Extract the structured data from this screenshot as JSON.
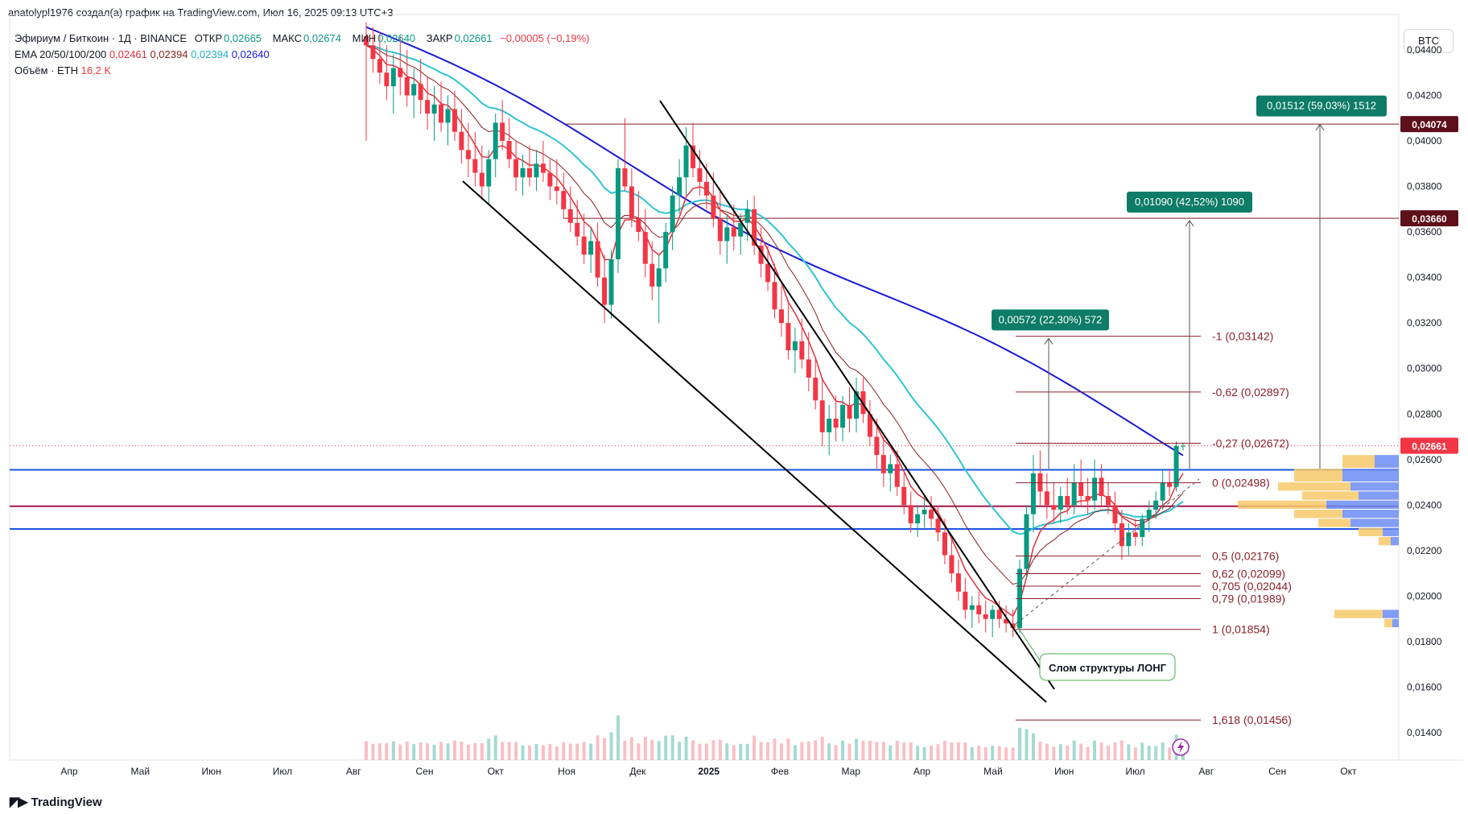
{
  "header": {
    "caption": "anatolypl1976 создал(а) график на TradingView.com, Июл 16, 2025 09:13 UTC+3"
  },
  "legend": {
    "symbol": "Эфириум / Биткоин · 1Д · BINANCE",
    "open_label": "ОТКР",
    "open": "0,02665",
    "high_label": "МАКС",
    "high": "0,02674",
    "low_label": "МИН",
    "low": "0,02640",
    "close_label": "ЗАКР",
    "close": "0,02661",
    "change": "−0,00005 (−0,19%)",
    "ema_label": "EMA 20/50/100/200",
    "ema20": "0,02461",
    "ema50": "0,02394",
    "ema100": "0,02394",
    "ema200": "0,02640",
    "volume_label": "Объём · ETH",
    "volume": "16,2 K"
  },
  "currency_button": "BTC",
  "branding": "TradingView",
  "colors": {
    "up": "#089981",
    "down": "#f23645",
    "ema20": "#e0303b",
    "ema50": "#8b1f1f",
    "ema100": "#2ec4d3",
    "ema200": "#1a1ad6",
    "blue_line": "#1e53e5",
    "maroon_line": "#a3174a",
    "accent_box": "#0e7c66",
    "price_tag": "#f23645",
    "dark_tag": "#5d0f1a"
  },
  "chart_data": {
    "type": "candlestick",
    "y_scale": "linear",
    "ylim": [
      0.0128,
      0.0452
    ],
    "y_ticks": [
      "0,04400",
      "0,04200",
      "0,04000",
      "0,03800",
      "0,03600",
      "0,03400",
      "0,03200",
      "0,03000",
      "0,02800",
      "0,02600",
      "0,02400",
      "0,02200",
      "0,02000",
      "0,01800",
      "0,01600",
      "0,01400"
    ],
    "x_ticks": [
      "Апр",
      "Май",
      "Июн",
      "Июл",
      "Авг",
      "Сен",
      "Окт",
      "Ноя",
      "Дек",
      "2025",
      "Фев",
      "Мар",
      "Апр",
      "Май",
      "Июн",
      "Июл",
      "Авг",
      "Сен",
      "Окт"
    ],
    "price_tags": [
      {
        "text": "0,04074",
        "value": 0.04074,
        "style": "dark"
      },
      {
        "text": "0,03660",
        "value": 0.0366,
        "style": "dark"
      },
      {
        "text": "0,02661",
        "value": 0.02661,
        "style": "last"
      }
    ],
    "horizontal_levels": [
      {
        "value": 0.02555,
        "color": "blue"
      },
      {
        "value": 0.02395,
        "color": "maroon"
      },
      {
        "value": 0.02295,
        "color": "blue"
      },
      {
        "value": 0.04074,
        "color": "maroon_thin"
      },
      {
        "value": 0.0366,
        "color": "maroon_thin"
      }
    ],
    "fibonacci": [
      {
        "label": "-1 (0,03142)",
        "value": 0.03142
      },
      {
        "label": "-0,62 (0,02897)",
        "value": 0.02897
      },
      {
        "label": "-0,27 (0,02672)",
        "value": 0.02672
      },
      {
        "label": "0 (0,02498)",
        "value": 0.02498
      },
      {
        "label": "0,5 (0,02176)",
        "value": 0.02176
      },
      {
        "label": "0,62 (0,02099)",
        "value": 0.02099
      },
      {
        "label": "0,705 (0,02044)",
        "value": 0.02044
      },
      {
        "label": "0,79 (0,01989)",
        "value": 0.01989
      },
      {
        "label": "1 (0,01854)",
        "value": 0.01854
      },
      {
        "label": "1,618 (0,01456)",
        "value": 0.01456
      }
    ],
    "measure_boxes": [
      {
        "text": "0,00572 (22,30%) 572",
        "from": 0.0256,
        "to": 0.03132
      },
      {
        "text": "0,01090 (42,52%) 1090",
        "from": 0.0256,
        "to": 0.0365
      },
      {
        "text": "0,01512 (59,03%) 1512",
        "from": 0.0256,
        "to": 0.04072
      }
    ],
    "annotation": "Слом структуры ЛОНГ",
    "ema_last": {
      "ema20": 0.02461,
      "ema50": 0.02394,
      "ema100": 0.02394,
      "ema200": 0.0264
    },
    "candles_note": "approximate series reconstructed from image (open, high, low, close), daily",
    "candles": [
      [
        0.0446,
        0.0452,
        0.04,
        0.0442
      ],
      [
        0.0442,
        0.045,
        0.043,
        0.0436
      ],
      [
        0.0436,
        0.0448,
        0.0425,
        0.043
      ],
      [
        0.043,
        0.0442,
        0.0418,
        0.0424
      ],
      [
        0.0424,
        0.0438,
        0.0412,
        0.0432
      ],
      [
        0.0432,
        0.0446,
        0.042,
        0.0428
      ],
      [
        0.0428,
        0.044,
        0.0415,
        0.042
      ],
      [
        0.042,
        0.0432,
        0.041,
        0.0425
      ],
      [
        0.0425,
        0.0436,
        0.0412,
        0.0418
      ],
      [
        0.0418,
        0.0428,
        0.0405,
        0.0412
      ],
      [
        0.0412,
        0.0424,
        0.04,
        0.0416
      ],
      [
        0.0416,
        0.0426,
        0.0404,
        0.0408
      ],
      [
        0.0408,
        0.042,
        0.0398,
        0.0414
      ],
      [
        0.0414,
        0.0422,
        0.04,
        0.0404
      ],
      [
        0.0404,
        0.0414,
        0.039,
        0.0396
      ],
      [
        0.0396,
        0.0408,
        0.0384,
        0.0392
      ],
      [
        0.0392,
        0.0404,
        0.038,
        0.0386
      ],
      [
        0.0386,
        0.0398,
        0.0374,
        0.038
      ],
      [
        0.038,
        0.0396,
        0.0372,
        0.0392
      ],
      [
        0.0392,
        0.0412,
        0.0384,
        0.0408
      ],
      [
        0.0408,
        0.0418,
        0.0396,
        0.04
      ],
      [
        0.04,
        0.041,
        0.0388,
        0.0392
      ],
      [
        0.0392,
        0.04,
        0.0378,
        0.0384
      ],
      [
        0.0384,
        0.0394,
        0.0376,
        0.0388
      ],
      [
        0.0388,
        0.0398,
        0.038,
        0.0384
      ],
      [
        0.0384,
        0.0396,
        0.0378,
        0.039
      ],
      [
        0.039,
        0.04,
        0.0382,
        0.0386
      ],
      [
        0.0386,
        0.0392,
        0.0374,
        0.038
      ],
      [
        0.038,
        0.0392,
        0.0372,
        0.0378
      ],
      [
        0.0378,
        0.0386,
        0.0366,
        0.037
      ],
      [
        0.037,
        0.038,
        0.036,
        0.0364
      ],
      [
        0.0364,
        0.0374,
        0.0354,
        0.0358
      ],
      [
        0.0358,
        0.0368,
        0.0346,
        0.035
      ],
      [
        0.035,
        0.0362,
        0.0342,
        0.0356
      ],
      [
        0.0356,
        0.0364,
        0.0336,
        0.034
      ],
      [
        0.034,
        0.035,
        0.032,
        0.0328
      ],
      [
        0.0328,
        0.0352,
        0.0322,
        0.0348
      ],
      [
        0.0348,
        0.0392,
        0.0342,
        0.0388
      ],
      [
        0.0388,
        0.041,
        0.0378,
        0.038
      ],
      [
        0.038,
        0.0388,
        0.0362,
        0.0366
      ],
      [
        0.0366,
        0.0378,
        0.0356,
        0.036
      ],
      [
        0.036,
        0.037,
        0.034,
        0.0346
      ],
      [
        0.0346,
        0.0356,
        0.033,
        0.0336
      ],
      [
        0.0336,
        0.035,
        0.032,
        0.0344
      ],
      [
        0.0344,
        0.0364,
        0.0338,
        0.036
      ],
      [
        0.036,
        0.038,
        0.0352,
        0.0376
      ],
      [
        0.0376,
        0.0392,
        0.0368,
        0.0384
      ],
      [
        0.0384,
        0.0406,
        0.0376,
        0.0398
      ],
      [
        0.0398,
        0.0408,
        0.0384,
        0.0388
      ],
      [
        0.0388,
        0.0396,
        0.0376,
        0.0382
      ],
      [
        0.0382,
        0.039,
        0.037,
        0.0376
      ],
      [
        0.0376,
        0.0386,
        0.0362,
        0.0366
      ],
      [
        0.0366,
        0.0378,
        0.035,
        0.0356
      ],
      [
        0.0356,
        0.0368,
        0.0346,
        0.0362
      ],
      [
        0.0362,
        0.0372,
        0.0352,
        0.0358
      ],
      [
        0.0358,
        0.0368,
        0.035,
        0.0364
      ],
      [
        0.0364,
        0.0374,
        0.0356,
        0.037
      ],
      [
        0.037,
        0.0376,
        0.035,
        0.0354
      ],
      [
        0.0354,
        0.0362,
        0.034,
        0.0346
      ],
      [
        0.0346,
        0.0354,
        0.0334,
        0.0338
      ],
      [
        0.0338,
        0.0346,
        0.0322,
        0.0326
      ],
      [
        0.0326,
        0.0336,
        0.0314,
        0.032
      ],
      [
        0.032,
        0.033,
        0.0304,
        0.0308
      ],
      [
        0.0308,
        0.0318,
        0.0298,
        0.0312
      ],
      [
        0.0312,
        0.0322,
        0.03,
        0.0304
      ],
      [
        0.0304,
        0.0316,
        0.029,
        0.0296
      ],
      [
        0.0296,
        0.0304,
        0.0282,
        0.0286
      ],
      [
        0.0286,
        0.0296,
        0.0266,
        0.0272
      ],
      [
        0.0272,
        0.0284,
        0.0262,
        0.0278
      ],
      [
        0.0278,
        0.0288,
        0.0268,
        0.0274
      ],
      [
        0.0274,
        0.0288,
        0.0268,
        0.0284
      ],
      [
        0.0284,
        0.0292,
        0.0272,
        0.0278
      ],
      [
        0.0278,
        0.0296,
        0.0272,
        0.029
      ],
      [
        0.029,
        0.0296,
        0.0276,
        0.028
      ],
      [
        0.028,
        0.0286,
        0.0266,
        0.027
      ],
      [
        0.027,
        0.0278,
        0.0256,
        0.0262
      ],
      [
        0.0262,
        0.027,
        0.0248,
        0.0254
      ],
      [
        0.0254,
        0.0262,
        0.0246,
        0.0258
      ],
      [
        0.0258,
        0.0264,
        0.0244,
        0.0248
      ],
      [
        0.0248,
        0.0254,
        0.0236,
        0.024
      ],
      [
        0.024,
        0.0246,
        0.0228,
        0.0232
      ],
      [
        0.0232,
        0.024,
        0.0226,
        0.0236
      ],
      [
        0.0236,
        0.0244,
        0.023,
        0.0238
      ],
      [
        0.0238,
        0.0244,
        0.023,
        0.0234
      ],
      [
        0.0234,
        0.024,
        0.0224,
        0.0228
      ],
      [
        0.0228,
        0.0234,
        0.0214,
        0.0218
      ],
      [
        0.0218,
        0.0226,
        0.0206,
        0.021
      ],
      [
        0.021,
        0.0216,
        0.0198,
        0.0202
      ],
      [
        0.0202,
        0.0208,
        0.019,
        0.0194
      ],
      [
        0.0194,
        0.02,
        0.0186,
        0.0196
      ],
      [
        0.0196,
        0.0202,
        0.0188,
        0.0192
      ],
      [
        0.0192,
        0.0198,
        0.0184,
        0.019
      ],
      [
        0.019,
        0.0196,
        0.0182,
        0.0194
      ],
      [
        0.0194,
        0.0198,
        0.0186,
        0.019
      ],
      [
        0.019,
        0.0196,
        0.0184,
        0.0188
      ],
      [
        0.0188,
        0.0194,
        0.0182,
        0.0186
      ],
      [
        0.0186,
        0.0216,
        0.0184,
        0.0212
      ],
      [
        0.0212,
        0.024,
        0.0208,
        0.0236
      ],
      [
        0.0236,
        0.0262,
        0.0228,
        0.0254
      ],
      [
        0.0254,
        0.0264,
        0.024,
        0.0246
      ],
      [
        0.0246,
        0.0254,
        0.0234,
        0.024
      ],
      [
        0.024,
        0.025,
        0.0232,
        0.0238
      ],
      [
        0.0238,
        0.0248,
        0.0232,
        0.0244
      ],
      [
        0.0244,
        0.0252,
        0.0236,
        0.024
      ],
      [
        0.024,
        0.0258,
        0.0236,
        0.025
      ],
      [
        0.025,
        0.026,
        0.024,
        0.0244
      ],
      [
        0.0244,
        0.0252,
        0.0236,
        0.0242
      ],
      [
        0.0242,
        0.026,
        0.0238,
        0.0252
      ],
      [
        0.0252,
        0.0258,
        0.024,
        0.0244
      ],
      [
        0.0244,
        0.025,
        0.0236,
        0.024
      ],
      [
        0.024,
        0.0246,
        0.0228,
        0.0232
      ],
      [
        0.0232,
        0.0238,
        0.0216,
        0.0222
      ],
      [
        0.0222,
        0.0232,
        0.0218,
        0.0228
      ],
      [
        0.0228,
        0.0234,
        0.0222,
        0.0226
      ],
      [
        0.0226,
        0.0236,
        0.0222,
        0.0234
      ],
      [
        0.0234,
        0.0242,
        0.0228,
        0.0238
      ],
      [
        0.0238,
        0.0246,
        0.0234,
        0.0242
      ],
      [
        0.0242,
        0.0256,
        0.0238,
        0.025
      ],
      [
        0.025,
        0.0256,
        0.0244,
        0.0248
      ],
      [
        0.0248,
        0.0268,
        0.0246,
        0.0266
      ],
      [
        0.0266,
        0.02674,
        0.0264,
        0.02661
      ]
    ]
  }
}
